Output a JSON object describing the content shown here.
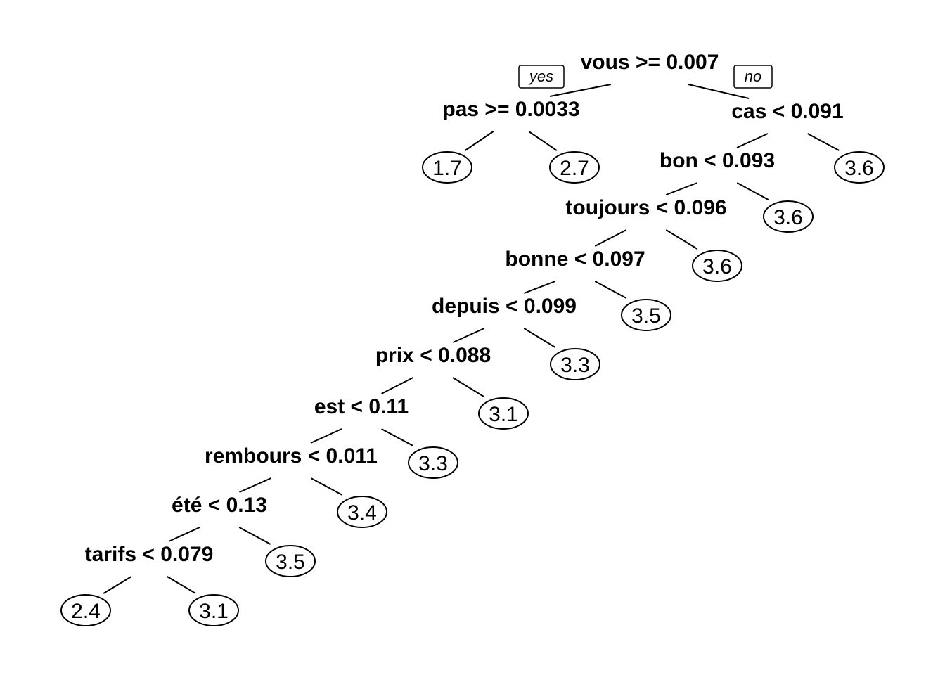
{
  "tree": {
    "yes_label": "yes",
    "no_label": "no",
    "root": {
      "split": "vous >= 0.007",
      "yes": {
        "split": "pas >= 0.0033",
        "yes": {
          "value": "1.7"
        },
        "no": {
          "value": "2.7"
        }
      },
      "no": {
        "split": "cas < 0.091",
        "yes": {
          "split": "bon < 0.093",
          "yes": {
            "split": "toujours < 0.096",
            "yes": {
              "split": "bonne < 0.097",
              "yes": {
                "split": "depuis < 0.099",
                "yes": {
                  "split": "prix < 0.088",
                  "yes": {
                    "split": "est < 0.11",
                    "yes": {
                      "split": "rembours < 0.011",
                      "yes": {
                        "split": "été < 0.13",
                        "yes": {
                          "split": "tarifs < 0.079",
                          "yes": {
                            "value": "2.4"
                          },
                          "no": {
                            "value": "3.1"
                          }
                        },
                        "no": {
                          "value": "3.5"
                        }
                      },
                      "no": {
                        "value": "3.4"
                      }
                    },
                    "no": {
                      "value": "3.3"
                    }
                  },
                  "no": {
                    "value": "3.1"
                  }
                },
                "no": {
                  "value": "3.3"
                }
              },
              "no": {
                "value": "3.5"
              }
            },
            "no": {
              "value": "3.6"
            }
          },
          "no": {
            "value": "3.6"
          }
        },
        "no": {
          "value": "3.6"
        }
      }
    }
  }
}
